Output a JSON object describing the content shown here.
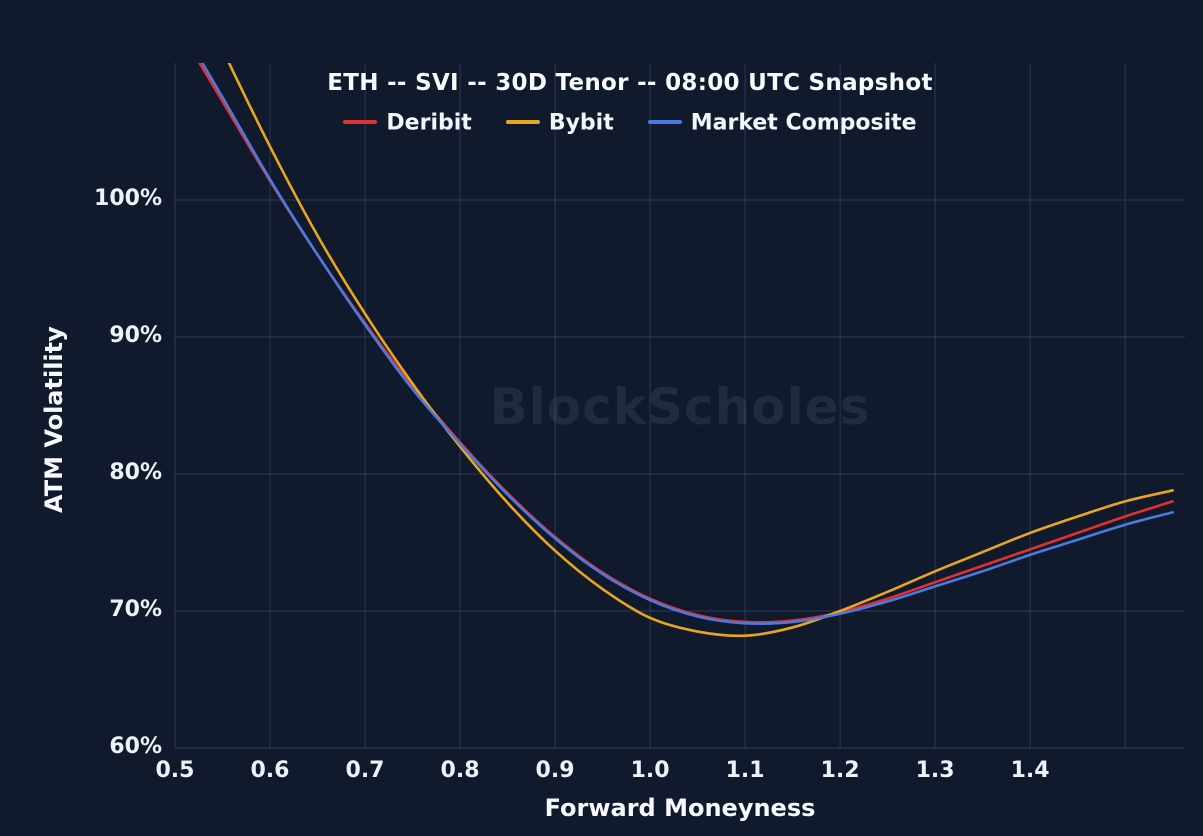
{
  "chart_data": {
    "type": "line",
    "title": "ETH -- SVI -- 30D Tenor -- 08:00 UTC Snapshot",
    "xlabel": "Forward Moneyness",
    "ylabel": "ATM Volatility",
    "watermark": "BlockScholes",
    "x": [
      0.5,
      0.55,
      0.6,
      0.65,
      0.7,
      0.75,
      0.8,
      0.85,
      0.9,
      0.95,
      1.0,
      1.05,
      1.1,
      1.15,
      1.2,
      1.25,
      1.3,
      1.35,
      1.4,
      1.45,
      1.5,
      1.55
    ],
    "series": [
      {
        "name": "Deribit",
        "color": "#e03131",
        "values": [
          113.0,
          107.2,
          101.4,
          96.0,
          91.0,
          86.4,
          82.3,
          78.6,
          75.4,
          72.8,
          70.9,
          69.7,
          69.2,
          69.3,
          69.9,
          70.9,
          72.1,
          73.3,
          74.5,
          75.7,
          76.9,
          78.0
        ]
      },
      {
        "name": "Bybit",
        "color": "#e8a620",
        "values": [
          118.5,
          111.0,
          103.9,
          97.4,
          91.7,
          86.6,
          82.0,
          77.9,
          74.4,
          71.6,
          69.5,
          68.5,
          68.2,
          68.8,
          70.0,
          71.4,
          72.9,
          74.3,
          75.7,
          76.9,
          78.0,
          78.8
        ]
      },
      {
        "name": "Market Composite",
        "color": "#4a7ae0",
        "values": [
          113.4,
          107.5,
          101.5,
          96.0,
          90.9,
          86.2,
          82.2,
          78.5,
          75.3,
          72.7,
          70.8,
          69.6,
          69.1,
          69.2,
          69.8,
          70.7,
          71.8,
          72.9,
          74.1,
          75.2,
          76.3,
          77.2
        ]
      }
    ],
    "xlim": [
      0.5,
      1.563
    ],
    "ylim": [
      60,
      110
    ],
    "x_ticks": [
      0.5,
      0.6,
      0.7,
      0.8,
      0.9,
      1.0,
      1.1,
      1.2,
      1.3,
      1.4
    ],
    "x_tick_labels": [
      "0.5",
      "0.6",
      "0.7",
      "0.8",
      "0.9",
      "1.0",
      "1.1",
      "1.2",
      "1.3",
      "1.4"
    ],
    "y_ticks": [
      60,
      70,
      80,
      90,
      100
    ],
    "y_tick_labels": [
      "60%",
      "70%",
      "80%",
      "90%",
      "100%"
    ],
    "x_grid": [
      0.5,
      0.6,
      0.7,
      0.8,
      0.9,
      1.0,
      1.1,
      1.2,
      1.3,
      1.4,
      1.5
    ],
    "y_grid": [
      60,
      70,
      80,
      90,
      100
    ],
    "grid": true,
    "legend_position": "top",
    "colors": {
      "background": "#101a2c",
      "grid": "rgba(110,140,190,0.28)",
      "text": "#eef2f7"
    }
  }
}
